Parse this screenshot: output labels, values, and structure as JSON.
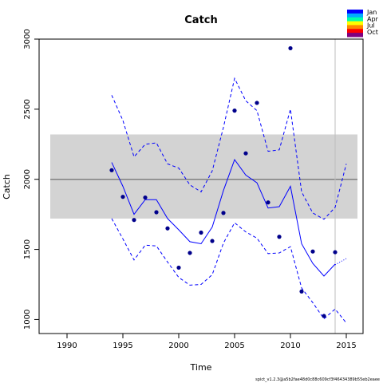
{
  "chart_data": {
    "type": "line",
    "title": "Catch",
    "xlabel": "Time",
    "ylabel": "Catch",
    "xlim": [
      1987.5,
      2016.5
    ],
    "ylim": [
      900,
      3000
    ],
    "x_ticks": [
      1990,
      1995,
      2000,
      2005,
      2010,
      2015
    ],
    "y_ticks": [
      1000,
      1500,
      2000,
      2500,
      3000
    ],
    "reference_line": 2000,
    "reference_band": [
      1720,
      2320
    ],
    "reference_band_x": [
      1988.5,
      2016
    ],
    "vertical_marker": 2014,
    "observed": {
      "x": [
        1994,
        1995,
        1996,
        1997,
        1998,
        1999,
        2000,
        2001,
        2002,
        2003,
        2004,
        2005,
        2006,
        2007,
        2008,
        2009,
        2010,
        2011,
        2012,
        2013,
        2014
      ],
      "y": [
        2065,
        1875,
        1710,
        1870,
        1765,
        1650,
        1370,
        1475,
        1620,
        1560,
        1760,
        2490,
        2185,
        2545,
        1835,
        1590,
        2935,
        1200,
        1485,
        1025,
        1480
      ]
    },
    "estimate": {
      "x": [
        1994,
        1995,
        1996,
        1997,
        1998,
        1999,
        2000,
        2001,
        2002,
        2003,
        2004,
        2005,
        2006,
        2007,
        2008,
        2009,
        2010,
        2011,
        2012,
        2013,
        2014
      ],
      "y": [
        2120,
        1950,
        1750,
        1855,
        1855,
        1720,
        1640,
        1555,
        1540,
        1660,
        1920,
        2140,
        2030,
        1975,
        1795,
        1805,
        1950,
        1540,
        1400,
        1310,
        1395
      ]
    },
    "upper_ci": {
      "x": [
        1994,
        1995,
        1996,
        1997,
        1998,
        1999,
        2000,
        2001,
        2002,
        2003,
        2004,
        2005,
        2006,
        2007,
        2008,
        2009,
        2010,
        2011,
        2012,
        2013,
        2014,
        2015
      ],
      "y": [
        2600,
        2420,
        2160,
        2250,
        2260,
        2110,
        2080,
        1960,
        1910,
        2060,
        2370,
        2720,
        2560,
        2490,
        2200,
        2210,
        2500,
        1910,
        1760,
        1715,
        1800,
        2110
      ]
    },
    "lower_ci": {
      "x": [
        1994,
        1995,
        1996,
        1997,
        1998,
        1999,
        2000,
        2001,
        2002,
        2003,
        2004,
        2005,
        2006,
        2007,
        2008,
        2009,
        2010,
        2011,
        2012,
        2013,
        2014,
        2015
      ],
      "y": [
        1720,
        1575,
        1425,
        1530,
        1525,
        1410,
        1300,
        1245,
        1250,
        1320,
        1545,
        1690,
        1625,
        1580,
        1470,
        1475,
        1520,
        1225,
        1120,
        1005,
        1075,
        975
      ]
    },
    "prediction": {
      "x": [
        2014,
        2015
      ],
      "y": [
        1390,
        1435
      ]
    },
    "legend": {
      "position": "top-right",
      "labels": [
        "Jan",
        "Apr",
        "Jul",
        "Oct"
      ],
      "colors": [
        "#0000ff",
        "#00aaff",
        "#00ffaa",
        "#ffff00",
        "#ff8800",
        "#ff0000",
        "#800080"
      ]
    },
    "colors": {
      "series": "#0000ff",
      "points": "#00008b",
      "band": "#d3d3d3",
      "reference_line": "#808080",
      "vertical_marker": "#bebebe"
    }
  },
  "footer": "spict_v1.2.3@a5b2fae48d0c88c609cf3f46434389b55eb2eaee"
}
